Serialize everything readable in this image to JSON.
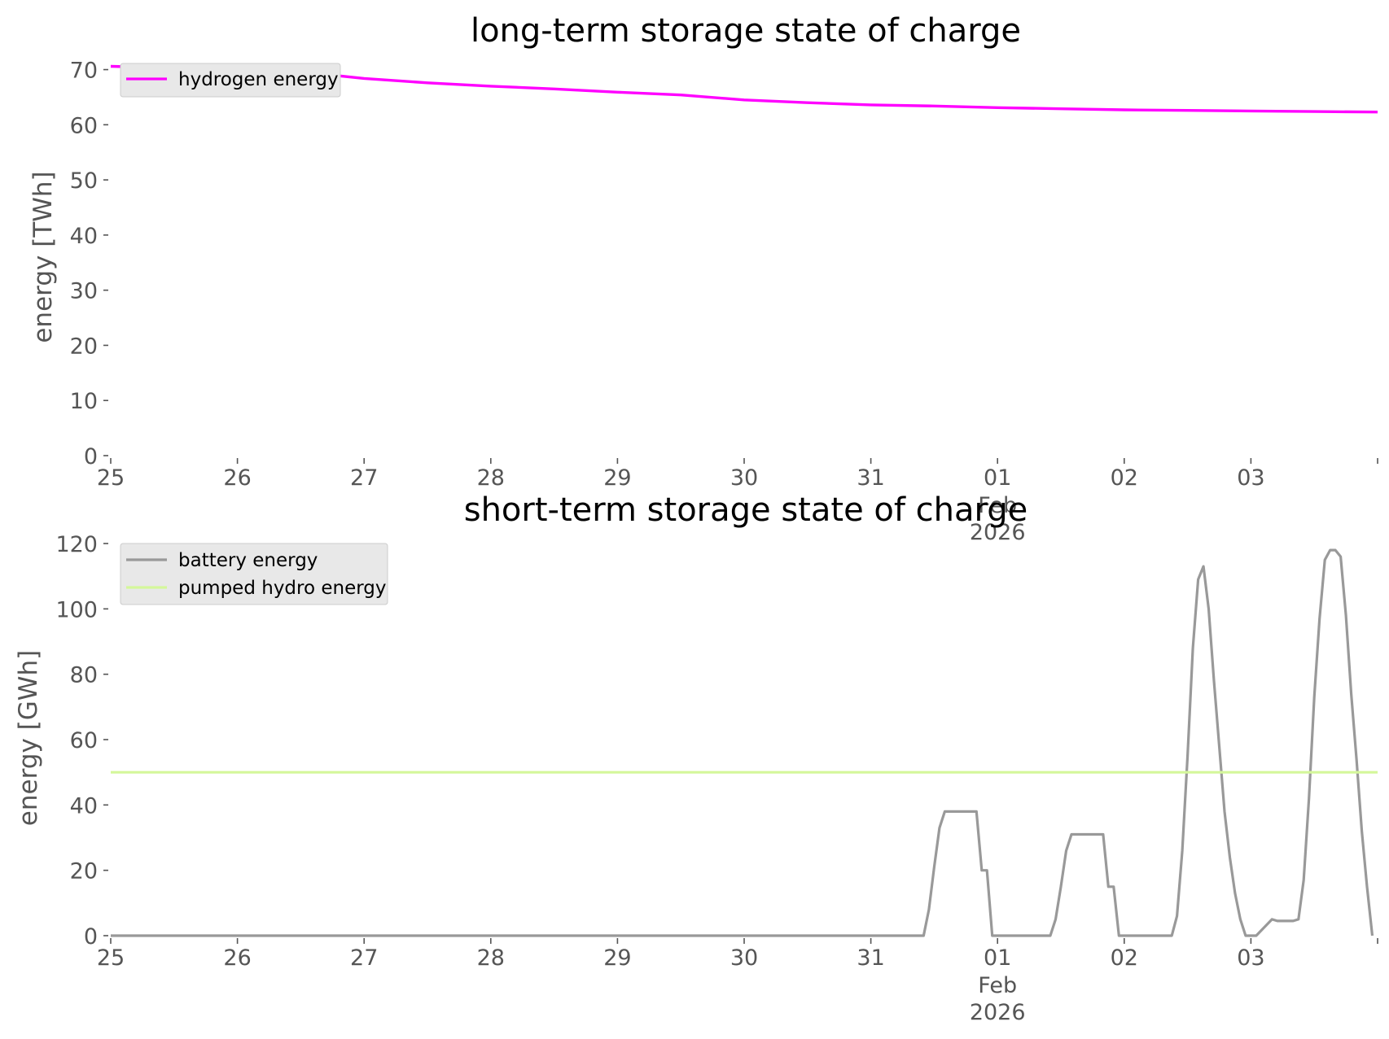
{
  "chart_data": [
    {
      "type": "line",
      "title": "long-term storage state of charge",
      "ylabel": "energy [TWh]",
      "xlabel": "",
      "ylim": [
        0,
        72
      ],
      "yticks": [
        0,
        10,
        20,
        30,
        40,
        50,
        60,
        70
      ],
      "xlim": [
        "2026-01-25",
        "2026-02-04"
      ],
      "xticks": [
        {
          "date": "2026-01-25",
          "label": "25"
        },
        {
          "date": "2026-01-26",
          "label": "26"
        },
        {
          "date": "2026-01-27",
          "label": "27"
        },
        {
          "date": "2026-01-28",
          "label": "28"
        },
        {
          "date": "2026-01-29",
          "label": "29"
        },
        {
          "date": "2026-01-30",
          "label": "30"
        },
        {
          "date": "2026-01-31",
          "label": "31"
        },
        {
          "date": "2026-02-01",
          "label": "01",
          "sublabels": [
            "Feb",
            "2026"
          ]
        },
        {
          "date": "2026-02-02",
          "label": "02"
        },
        {
          "date": "2026-02-03",
          "label": "03"
        }
      ],
      "grid": false,
      "legend": "top-left",
      "series": [
        {
          "name": "hydrogen energy",
          "color": "#ff00ff",
          "points": [
            [
              "2026-01-25 00:00",
              70.6
            ],
            [
              "2026-01-25 12:00",
              70.3
            ],
            [
              "2026-01-26 00:00",
              70.0
            ],
            [
              "2026-01-26 12:00",
              69.6
            ],
            [
              "2026-01-27 00:00",
              68.4
            ],
            [
              "2026-01-27 12:00",
              67.6
            ],
            [
              "2026-01-28 00:00",
              67.0
            ],
            [
              "2026-01-28 12:00",
              66.5
            ],
            [
              "2026-01-29 00:00",
              65.9
            ],
            [
              "2026-01-29 12:00",
              65.4
            ],
            [
              "2026-01-30 00:00",
              64.5
            ],
            [
              "2026-01-30 12:00",
              64.0
            ],
            [
              "2026-01-31 00:00",
              63.6
            ],
            [
              "2026-01-31 12:00",
              63.4
            ],
            [
              "2026-02-01 00:00",
              63.1
            ],
            [
              "2026-02-01 12:00",
              62.9
            ],
            [
              "2026-02-02 00:00",
              62.7
            ],
            [
              "2026-02-02 12:00",
              62.6
            ],
            [
              "2026-02-03 00:00",
              62.5
            ],
            [
              "2026-02-03 12:00",
              62.4
            ],
            [
              "2026-02-04 00:00",
              62.3
            ]
          ]
        }
      ]
    },
    {
      "type": "line",
      "title": "short-term storage state of charge",
      "ylabel": "energy [GWh]",
      "xlabel": "",
      "ylim": [
        0,
        122
      ],
      "yticks": [
        0,
        20,
        40,
        60,
        80,
        100,
        120
      ],
      "xlim": [
        "2026-01-25",
        "2026-02-04"
      ],
      "xticks": [
        {
          "date": "2026-01-25",
          "label": "25"
        },
        {
          "date": "2026-01-26",
          "label": "26"
        },
        {
          "date": "2026-01-27",
          "label": "27"
        },
        {
          "date": "2026-01-28",
          "label": "28"
        },
        {
          "date": "2026-01-29",
          "label": "29"
        },
        {
          "date": "2026-01-30",
          "label": "30"
        },
        {
          "date": "2026-01-31",
          "label": "31"
        },
        {
          "date": "2026-02-01",
          "label": "01",
          "sublabels": [
            "Feb",
            "2026"
          ]
        },
        {
          "date": "2026-02-02",
          "label": "02"
        },
        {
          "date": "2026-02-03",
          "label": "03"
        }
      ],
      "grid": false,
      "legend": "top-left",
      "series": [
        {
          "name": "battery energy",
          "color": "#999999",
          "points": [
            [
              "2026-01-25 00:00",
              0
            ],
            [
              "2026-01-31 10:00",
              0
            ],
            [
              "2026-01-31 11:00",
              8
            ],
            [
              "2026-01-31 12:00",
              21
            ],
            [
              "2026-01-31 13:00",
              33
            ],
            [
              "2026-01-31 14:00",
              38
            ],
            [
              "2026-01-31 20:00",
              38
            ],
            [
              "2026-01-31 21:00",
              20
            ],
            [
              "2026-01-31 22:00",
              20
            ],
            [
              "2026-01-31 23:00",
              0
            ],
            [
              "2026-02-01 10:00",
              0
            ],
            [
              "2026-02-01 11:00",
              5
            ],
            [
              "2026-02-01 12:00",
              15
            ],
            [
              "2026-02-01 13:00",
              26
            ],
            [
              "2026-02-01 14:00",
              31
            ],
            [
              "2026-02-01 20:00",
              31
            ],
            [
              "2026-02-01 21:00",
              15
            ],
            [
              "2026-02-01 22:00",
              15
            ],
            [
              "2026-02-01 23:00",
              0
            ],
            [
              "2026-02-02 09:00",
              0
            ],
            [
              "2026-02-02 10:00",
              6
            ],
            [
              "2026-02-02 11:00",
              26
            ],
            [
              "2026-02-02 12:00",
              55
            ],
            [
              "2026-02-02 13:00",
              88
            ],
            [
              "2026-02-02 14:00",
              109
            ],
            [
              "2026-02-02 15:00",
              113
            ],
            [
              "2026-02-02 16:00",
              100
            ],
            [
              "2026-02-02 17:00",
              78
            ],
            [
              "2026-02-02 18:00",
              58
            ],
            [
              "2026-02-02 19:00",
              38
            ],
            [
              "2026-02-02 20:00",
              24
            ],
            [
              "2026-02-02 21:00",
              13
            ],
            [
              "2026-02-02 22:00",
              5
            ],
            [
              "2026-02-02 23:00",
              0
            ],
            [
              "2026-02-03 01:00",
              0
            ],
            [
              "2026-02-03 04:00",
              5
            ],
            [
              "2026-02-03 05:00",
              4.5
            ],
            [
              "2026-02-03 08:00",
              4.5
            ],
            [
              "2026-02-03 09:00",
              5
            ],
            [
              "2026-02-03 10:00",
              17
            ],
            [
              "2026-02-03 11:00",
              42
            ],
            [
              "2026-02-03 12:00",
              73
            ],
            [
              "2026-02-03 13:00",
              97
            ],
            [
              "2026-02-03 14:00",
              115
            ],
            [
              "2026-02-03 15:00",
              118
            ],
            [
              "2026-02-03 16:00",
              118
            ],
            [
              "2026-02-03 17:00",
              116
            ],
            [
              "2026-02-03 18:00",
              98
            ],
            [
              "2026-02-03 19:00",
              74
            ],
            [
              "2026-02-03 20:00",
              54
            ],
            [
              "2026-02-03 21:00",
              32
            ],
            [
              "2026-02-03 22:00",
              15
            ],
            [
              "2026-02-03 23:00",
              0
            ]
          ]
        },
        {
          "name": "pumped hydro energy",
          "color": "#d4f79a",
          "points": [
            [
              "2026-01-25 00:00",
              50
            ],
            [
              "2026-02-04 00:00",
              50
            ]
          ]
        }
      ]
    }
  ]
}
